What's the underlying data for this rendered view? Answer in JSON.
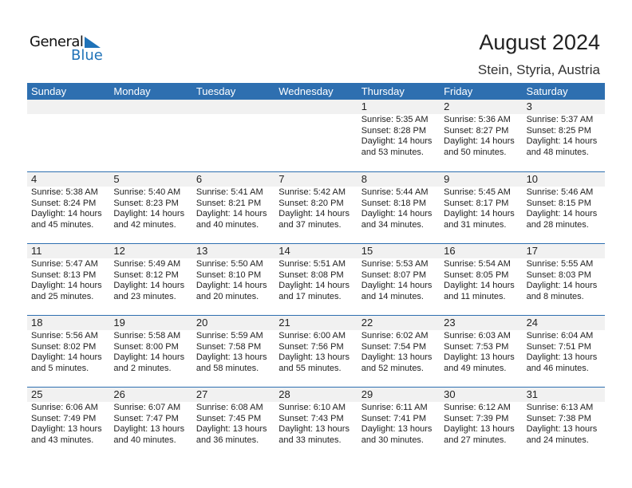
{
  "logo": {
    "text1": "General",
    "text2": "Blue",
    "color": "#1f72b8"
  },
  "header": {
    "title": "August 2024",
    "subtitle": "Stein, Styria, Austria"
  },
  "colors": {
    "header_bg": "#2e6fb0",
    "band_bg": "#f1f1f1"
  },
  "weekdays": [
    "Sunday",
    "Monday",
    "Tuesday",
    "Wednesday",
    "Thursday",
    "Friday",
    "Saturday"
  ],
  "weeks": [
    [
      null,
      null,
      null,
      null,
      {
        "day": "1",
        "sunrise": "Sunrise: 5:35 AM",
        "sunset": "Sunset: 8:28 PM",
        "daylight": "Daylight: 14 hours",
        "daylight2": "and 53 minutes."
      },
      {
        "day": "2",
        "sunrise": "Sunrise: 5:36 AM",
        "sunset": "Sunset: 8:27 PM",
        "daylight": "Daylight: 14 hours",
        "daylight2": "and 50 minutes."
      },
      {
        "day": "3",
        "sunrise": "Sunrise: 5:37 AM",
        "sunset": "Sunset: 8:25 PM",
        "daylight": "Daylight: 14 hours",
        "daylight2": "and 48 minutes."
      }
    ],
    [
      {
        "day": "4",
        "sunrise": "Sunrise: 5:38 AM",
        "sunset": "Sunset: 8:24 PM",
        "daylight": "Daylight: 14 hours",
        "daylight2": "and 45 minutes."
      },
      {
        "day": "5",
        "sunrise": "Sunrise: 5:40 AM",
        "sunset": "Sunset: 8:23 PM",
        "daylight": "Daylight: 14 hours",
        "daylight2": "and 42 minutes."
      },
      {
        "day": "6",
        "sunrise": "Sunrise: 5:41 AM",
        "sunset": "Sunset: 8:21 PM",
        "daylight": "Daylight: 14 hours",
        "daylight2": "and 40 minutes."
      },
      {
        "day": "7",
        "sunrise": "Sunrise: 5:42 AM",
        "sunset": "Sunset: 8:20 PM",
        "daylight": "Daylight: 14 hours",
        "daylight2": "and 37 minutes."
      },
      {
        "day": "8",
        "sunrise": "Sunrise: 5:44 AM",
        "sunset": "Sunset: 8:18 PM",
        "daylight": "Daylight: 14 hours",
        "daylight2": "and 34 minutes."
      },
      {
        "day": "9",
        "sunrise": "Sunrise: 5:45 AM",
        "sunset": "Sunset: 8:17 PM",
        "daylight": "Daylight: 14 hours",
        "daylight2": "and 31 minutes."
      },
      {
        "day": "10",
        "sunrise": "Sunrise: 5:46 AM",
        "sunset": "Sunset: 8:15 PM",
        "daylight": "Daylight: 14 hours",
        "daylight2": "and 28 minutes."
      }
    ],
    [
      {
        "day": "11",
        "sunrise": "Sunrise: 5:47 AM",
        "sunset": "Sunset: 8:13 PM",
        "daylight": "Daylight: 14 hours",
        "daylight2": "and 25 minutes."
      },
      {
        "day": "12",
        "sunrise": "Sunrise: 5:49 AM",
        "sunset": "Sunset: 8:12 PM",
        "daylight": "Daylight: 14 hours",
        "daylight2": "and 23 minutes."
      },
      {
        "day": "13",
        "sunrise": "Sunrise: 5:50 AM",
        "sunset": "Sunset: 8:10 PM",
        "daylight": "Daylight: 14 hours",
        "daylight2": "and 20 minutes."
      },
      {
        "day": "14",
        "sunrise": "Sunrise: 5:51 AM",
        "sunset": "Sunset: 8:08 PM",
        "daylight": "Daylight: 14 hours",
        "daylight2": "and 17 minutes."
      },
      {
        "day": "15",
        "sunrise": "Sunrise: 5:53 AM",
        "sunset": "Sunset: 8:07 PM",
        "daylight": "Daylight: 14 hours",
        "daylight2": "and 14 minutes."
      },
      {
        "day": "16",
        "sunrise": "Sunrise: 5:54 AM",
        "sunset": "Sunset: 8:05 PM",
        "daylight": "Daylight: 14 hours",
        "daylight2": "and 11 minutes."
      },
      {
        "day": "17",
        "sunrise": "Sunrise: 5:55 AM",
        "sunset": "Sunset: 8:03 PM",
        "daylight": "Daylight: 14 hours",
        "daylight2": "and 8 minutes."
      }
    ],
    [
      {
        "day": "18",
        "sunrise": "Sunrise: 5:56 AM",
        "sunset": "Sunset: 8:02 PM",
        "daylight": "Daylight: 14 hours",
        "daylight2": "and 5 minutes."
      },
      {
        "day": "19",
        "sunrise": "Sunrise: 5:58 AM",
        "sunset": "Sunset: 8:00 PM",
        "daylight": "Daylight: 14 hours",
        "daylight2": "and 2 minutes."
      },
      {
        "day": "20",
        "sunrise": "Sunrise: 5:59 AM",
        "sunset": "Sunset: 7:58 PM",
        "daylight": "Daylight: 13 hours",
        "daylight2": "and 58 minutes."
      },
      {
        "day": "21",
        "sunrise": "Sunrise: 6:00 AM",
        "sunset": "Sunset: 7:56 PM",
        "daylight": "Daylight: 13 hours",
        "daylight2": "and 55 minutes."
      },
      {
        "day": "22",
        "sunrise": "Sunrise: 6:02 AM",
        "sunset": "Sunset: 7:54 PM",
        "daylight": "Daylight: 13 hours",
        "daylight2": "and 52 minutes."
      },
      {
        "day": "23",
        "sunrise": "Sunrise: 6:03 AM",
        "sunset": "Sunset: 7:53 PM",
        "daylight": "Daylight: 13 hours",
        "daylight2": "and 49 minutes."
      },
      {
        "day": "24",
        "sunrise": "Sunrise: 6:04 AM",
        "sunset": "Sunset: 7:51 PM",
        "daylight": "Daylight: 13 hours",
        "daylight2": "and 46 minutes."
      }
    ],
    [
      {
        "day": "25",
        "sunrise": "Sunrise: 6:06 AM",
        "sunset": "Sunset: 7:49 PM",
        "daylight": "Daylight: 13 hours",
        "daylight2": "and 43 minutes."
      },
      {
        "day": "26",
        "sunrise": "Sunrise: 6:07 AM",
        "sunset": "Sunset: 7:47 PM",
        "daylight": "Daylight: 13 hours",
        "daylight2": "and 40 minutes."
      },
      {
        "day": "27",
        "sunrise": "Sunrise: 6:08 AM",
        "sunset": "Sunset: 7:45 PM",
        "daylight": "Daylight: 13 hours",
        "daylight2": "and 36 minutes."
      },
      {
        "day": "28",
        "sunrise": "Sunrise: 6:10 AM",
        "sunset": "Sunset: 7:43 PM",
        "daylight": "Daylight: 13 hours",
        "daylight2": "and 33 minutes."
      },
      {
        "day": "29",
        "sunrise": "Sunrise: 6:11 AM",
        "sunset": "Sunset: 7:41 PM",
        "daylight": "Daylight: 13 hours",
        "daylight2": "and 30 minutes."
      },
      {
        "day": "30",
        "sunrise": "Sunrise: 6:12 AM",
        "sunset": "Sunset: 7:39 PM",
        "daylight": "Daylight: 13 hours",
        "daylight2": "and 27 minutes."
      },
      {
        "day": "31",
        "sunrise": "Sunrise: 6:13 AM",
        "sunset": "Sunset: 7:38 PM",
        "daylight": "Daylight: 13 hours",
        "daylight2": "and 24 minutes."
      }
    ]
  ]
}
